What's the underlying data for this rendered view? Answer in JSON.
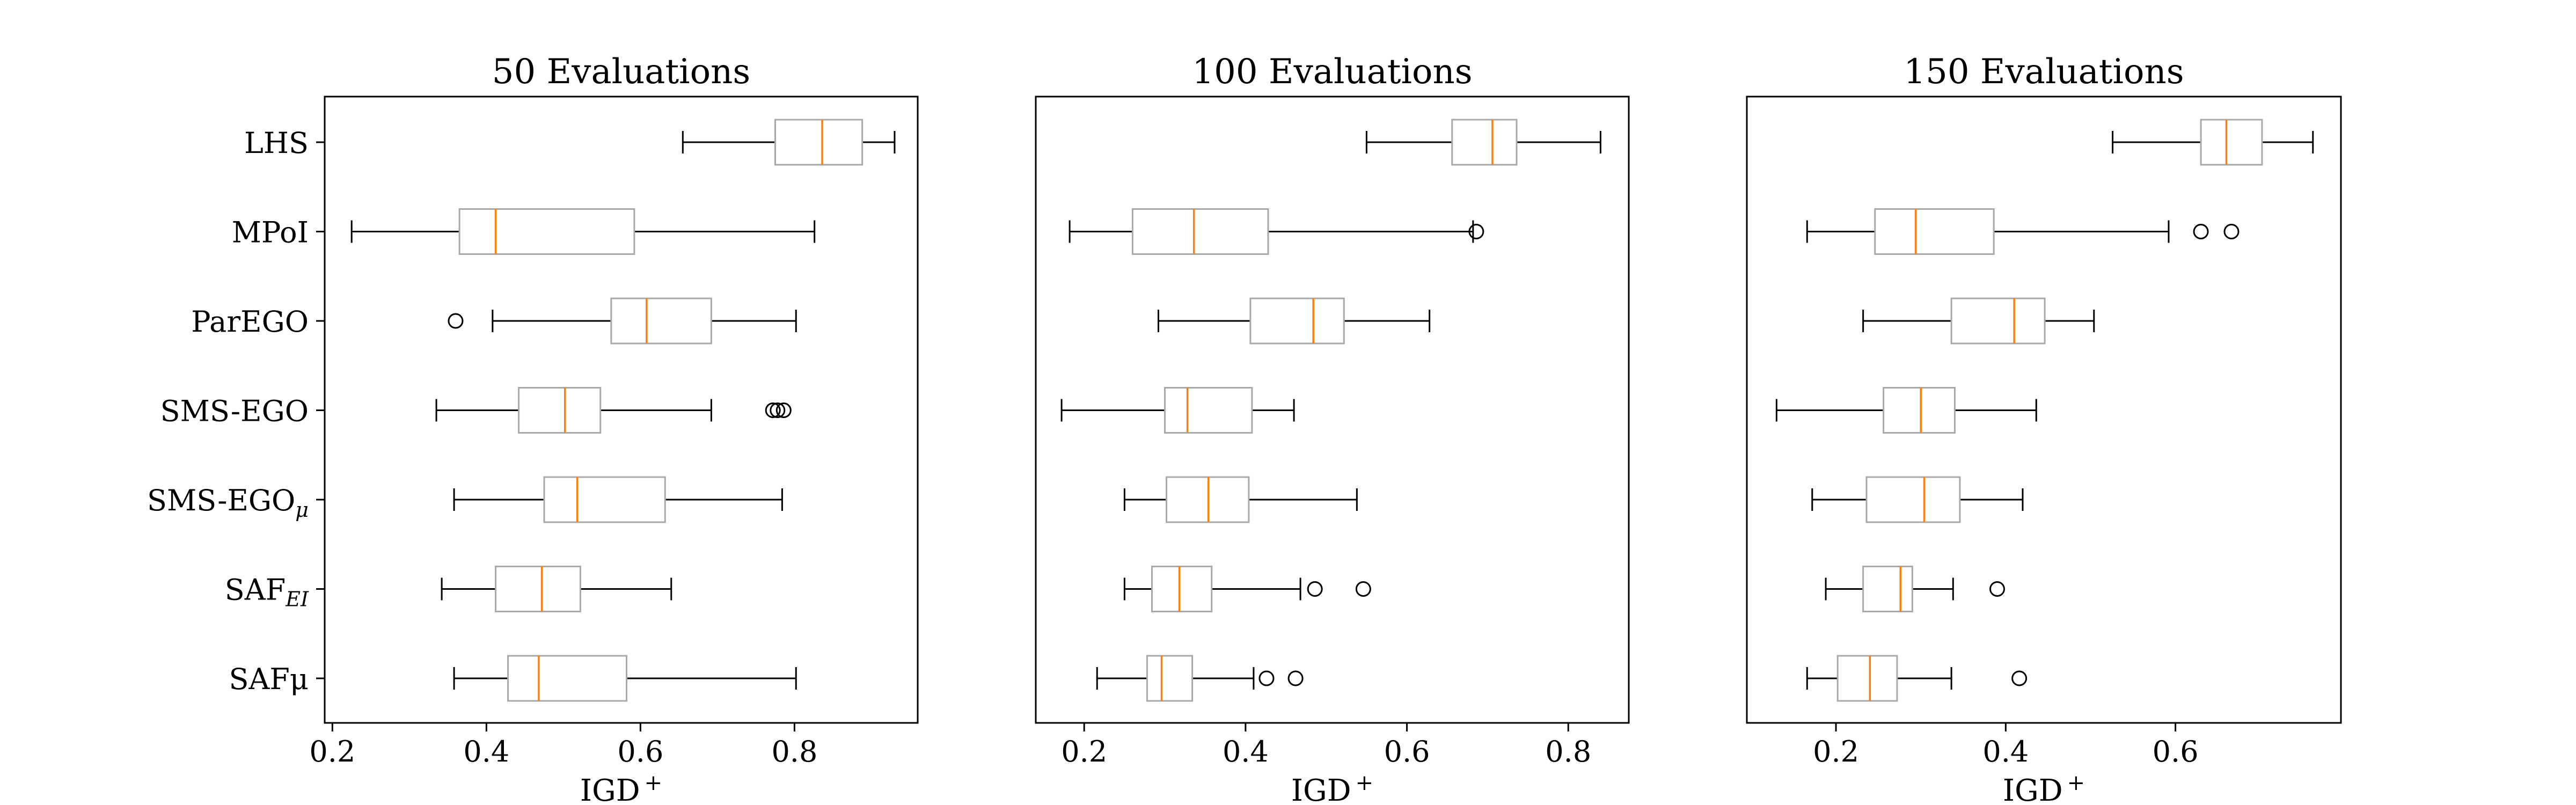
{
  "chart_data": [
    {
      "type": "boxplot",
      "title": "50 Evaluations",
      "xlabel": "IGD",
      "xlabel_sup": "+",
      "xlim": [
        0.19,
        0.96
      ],
      "xticks": [
        0.2,
        0.4,
        0.6,
        0.8
      ],
      "xtick_labels": [
        "0.2",
        "0.4",
        "0.6",
        "0.8"
      ],
      "boxes": [
        {
          "whislo": 0.655,
          "q1": 0.775,
          "med": 0.836,
          "q3": 0.888,
          "whishi": 0.93,
          "fliers": []
        },
        {
          "whislo": 0.225,
          "q1": 0.365,
          "med": 0.412,
          "q3": 0.592,
          "whishi": 0.826,
          "fliers": []
        },
        {
          "whislo": 0.408,
          "q1": 0.562,
          "med": 0.608,
          "q3": 0.692,
          "whishi": 0.802,
          "fliers": [
            0.36
          ]
        },
        {
          "whislo": 0.335,
          "q1": 0.442,
          "med": 0.502,
          "q3": 0.548,
          "whishi": 0.692,
          "fliers": [
            0.772,
            0.778,
            0.786
          ]
        },
        {
          "whislo": 0.358,
          "q1": 0.475,
          "med": 0.518,
          "q3": 0.632,
          "whishi": 0.784,
          "fliers": []
        },
        {
          "whislo": 0.342,
          "q1": 0.412,
          "med": 0.472,
          "q3": 0.522,
          "whishi": 0.64,
          "fliers": []
        },
        {
          "whislo": 0.358,
          "q1": 0.428,
          "med": 0.468,
          "q3": 0.582,
          "whishi": 0.802,
          "fliers": []
        }
      ]
    },
    {
      "type": "boxplot",
      "title": "100 Evaluations",
      "xlabel": "IGD",
      "xlabel_sup": "+",
      "xlim": [
        0.14,
        0.875
      ],
      "xticks": [
        0.2,
        0.4,
        0.6,
        0.8
      ],
      "xtick_labels": [
        "0.2",
        "0.4",
        "0.6",
        "0.8"
      ],
      "boxes": [
        {
          "whislo": 0.55,
          "q1": 0.656,
          "med": 0.706,
          "q3": 0.736,
          "whishi": 0.84,
          "fliers": []
        },
        {
          "whislo": 0.182,
          "q1": 0.26,
          "med": 0.336,
          "q3": 0.428,
          "whishi": 0.682,
          "fliers": [
            0.686
          ]
        },
        {
          "whislo": 0.292,
          "q1": 0.406,
          "med": 0.484,
          "q3": 0.522,
          "whishi": 0.628,
          "fliers": []
        },
        {
          "whislo": 0.172,
          "q1": 0.3,
          "med": 0.328,
          "q3": 0.408,
          "whishi": 0.46,
          "fliers": []
        },
        {
          "whislo": 0.25,
          "q1": 0.302,
          "med": 0.354,
          "q3": 0.404,
          "whishi": 0.538,
          "fliers": []
        },
        {
          "whislo": 0.25,
          "q1": 0.284,
          "med": 0.318,
          "q3": 0.358,
          "whishi": 0.468,
          "fliers": [
            0.486,
            0.546
          ]
        },
        {
          "whislo": 0.216,
          "q1": 0.278,
          "med": 0.296,
          "q3": 0.334,
          "whishi": 0.41,
          "fliers": [
            0.426,
            0.462
          ]
        }
      ]
    },
    {
      "type": "boxplot",
      "title": "150 Evaluations",
      "xlabel": "IGD",
      "xlabel_sup": "+",
      "xlim": [
        0.095,
        0.795
      ],
      "xticks": [
        0.2,
        0.4,
        0.6
      ],
      "xtick_labels": [
        "0.2",
        "0.4",
        "0.6"
      ],
      "boxes": [
        {
          "whislo": 0.526,
          "q1": 0.63,
          "med": 0.66,
          "q3": 0.702,
          "whishi": 0.762,
          "fliers": []
        },
        {
          "whislo": 0.166,
          "q1": 0.246,
          "med": 0.294,
          "q3": 0.386,
          "whishi": 0.592,
          "fliers": [
            0.63,
            0.666
          ]
        },
        {
          "whislo": 0.232,
          "q1": 0.336,
          "med": 0.41,
          "q3": 0.446,
          "whishi": 0.504,
          "fliers": []
        },
        {
          "whislo": 0.13,
          "q1": 0.256,
          "med": 0.3,
          "q3": 0.34,
          "whishi": 0.436,
          "fliers": []
        },
        {
          "whislo": 0.172,
          "q1": 0.236,
          "med": 0.304,
          "q3": 0.346,
          "whishi": 0.42,
          "fliers": []
        },
        {
          "whislo": 0.188,
          "q1": 0.232,
          "med": 0.276,
          "q3": 0.29,
          "whishi": 0.338,
          "fliers": [
            0.39
          ]
        },
        {
          "whislo": 0.166,
          "q1": 0.202,
          "med": 0.24,
          "q3": 0.272,
          "whishi": 0.336,
          "fliers": [
            0.416
          ]
        }
      ]
    }
  ],
  "categories": [
    {
      "base": "LHS",
      "sub": ""
    },
    {
      "base": "MPoI",
      "sub": ""
    },
    {
      "base": "ParEGO",
      "sub": ""
    },
    {
      "base": "SMS-EGO",
      "sub": ""
    },
    {
      "base": "SMS-EGO",
      "sub": "μ"
    },
    {
      "base": "SAF",
      "sub": "EI"
    },
    {
      "base": "SAFμ",
      "sub": ""
    }
  ],
  "colors": {
    "box": "#a9a9a9",
    "median": "#ff7f0e",
    "whisker": "#000000",
    "axes": "#000000"
  }
}
